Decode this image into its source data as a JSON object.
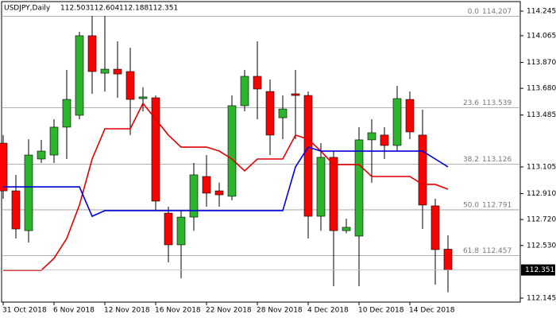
{
  "chart_data": {
    "type": "candlestick",
    "title": "USDJPY,Daily",
    "categories": [
      "31 Oct 2018",
      null,
      null,
      null,
      "6 Nov 2018",
      null,
      null,
      null,
      "12 Nov 2018",
      null,
      null,
      null,
      "16 Nov 2018",
      null,
      null,
      null,
      "22 Nov 2018",
      null,
      null,
      null,
      "28 Nov 2018",
      null,
      null,
      null,
      "4 Dec 2018",
      null,
      null,
      null,
      "10 Dec 2018",
      null,
      null,
      null,
      "14 Dec 2018",
      null,
      null,
      null
    ],
    "open": [
      113.279,
      112.93,
      112.639,
      113.163,
      113.192,
      113.396,
      113.483,
      114.065,
      113.791,
      113.82,
      113.803,
      113.605,
      113.611,
      112.767,
      112.535,
      112.738,
      113.035,
      112.93,
      112.89,
      113.553,
      113.768,
      113.657,
      113.465,
      113.64,
      113.628,
      112.744,
      113.175,
      112.639,
      112.599,
      113.303,
      113.338,
      113.262,
      113.599,
      113.338,
      112.82,
      112.503
    ],
    "high": [
      113.338,
      113.047,
      113.308,
      113.303,
      113.454,
      113.815,
      114.094,
      114.21,
      114.21,
      114.024,
      113.977,
      113.687,
      113.628,
      112.814,
      112.785,
      113.134,
      113.192,
      112.989,
      113.628,
      113.815,
      114.024,
      113.745,
      113.628,
      113.815,
      113.657,
      113.279,
      113.221,
      112.727,
      113.396,
      113.454,
      113.396,
      113.698,
      113.657,
      113.524,
      112.872,
      112.604
    ],
    "low": [
      112.872,
      112.581,
      112.552,
      113.134,
      113.134,
      113.163,
      113.454,
      113.64,
      113.657,
      113.611,
      113.338,
      113.512,
      112.785,
      112.407,
      112.29,
      112.639,
      112.814,
      112.814,
      112.861,
      113.512,
      113.454,
      113.192,
      113.308,
      113.308,
      112.581,
      112.639,
      112.232,
      112.62,
      112.232,
      112.989,
      113.163,
      113.221,
      113.308,
      112.651,
      112.244,
      112.188
    ],
    "close": [
      112.93,
      112.651,
      113.192,
      113.221,
      113.396,
      113.599,
      114.065,
      113.803,
      113.82,
      113.785,
      113.599,
      113.617,
      112.855,
      112.535,
      112.738,
      113.047,
      112.913,
      112.901,
      113.553,
      113.768,
      113.675,
      113.338,
      113.529,
      113.628,
      112.744,
      113.175,
      112.639,
      112.663,
      113.303,
      113.355,
      113.262,
      113.605,
      113.361,
      112.826,
      112.5,
      112.351
    ],
    "up_color": "#2db52d",
    "down_color": "#ff0000",
    "series": [
      {
        "color": "#e00000",
        "values": [
          112.349,
          112.349,
          112.349,
          112.349,
          112.436,
          112.581,
          112.826,
          113.163,
          113.384,
          113.384,
          113.384,
          113.57,
          113.454,
          113.338,
          113.25,
          113.25,
          113.25,
          113.221,
          113.163,
          113.076,
          113.163,
          113.163,
          113.163,
          113.338,
          113.308,
          113.221,
          113.122,
          113.122,
          113.122,
          113.035,
          113.035,
          113.035,
          113.035,
          112.977,
          112.977,
          112.942
        ]
      },
      {
        "color": "#0000dd",
        "values": [
          112.959,
          112.959,
          112.959,
          112.959,
          112.959,
          112.959,
          112.959,
          112.744,
          112.785,
          112.785,
          112.785,
          112.785,
          112.785,
          112.785,
          112.785,
          112.785,
          112.785,
          112.785,
          112.785,
          112.785,
          112.785,
          112.785,
          112.785,
          113.105,
          113.25,
          113.221,
          113.221,
          113.221,
          113.221,
          113.221,
          113.221,
          113.221,
          113.221,
          113.221,
          113.163,
          113.105
        ]
      }
    ],
    "fib_levels": [
      {
        "label": "0.0",
        "value": 114.207
      },
      {
        "label": "23.6",
        "value": 113.539
      },
      {
        "label": "38.2",
        "value": 113.126
      },
      {
        "label": "50.0",
        "value": 112.791
      },
      {
        "label": "61.8",
        "value": 112.457
      }
    ],
    "ylim": [
      112.145,
      114.245
    ],
    "yticks": [
      112.145,
      {
        "value": 112.53,
        "label": "112.530"
      },
      {
        "value": 112.72,
        "label": "112.720"
      },
      {
        "value": 112.91,
        "label": "112.910"
      },
      113.105,
      113.485,
      {
        "value": 113.68,
        "label": "113.680"
      },
      {
        "value": 113.87,
        "label": "113.870"
      },
      114.065,
      114.245
    ]
  }
}
